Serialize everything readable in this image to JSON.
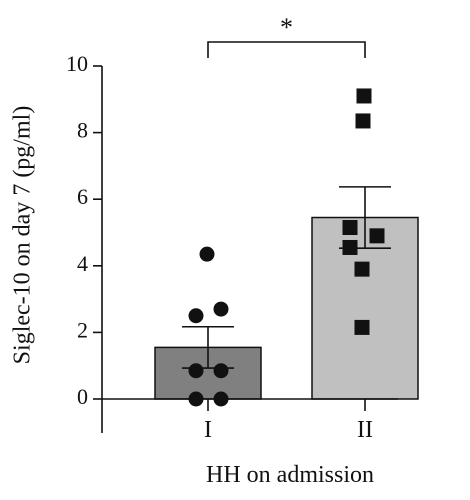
{
  "chart_data": {
    "type": "bar",
    "ylabel": "Siglec-10 on day 7 (pg/ml)",
    "xlabel": "HH on admission",
    "ylim": [
      0,
      10
    ],
    "yticks": [
      0,
      2,
      4,
      6,
      8,
      10
    ],
    "categories": [
      "I",
      "II"
    ],
    "means": [
      1.55,
      5.45
    ],
    "sem": [
      0.62,
      0.92
    ],
    "points": [
      [
        4.35,
        2.5,
        2.7,
        0.85,
        0.85,
        0.0,
        0.0
      ],
      [
        9.1,
        8.35,
        5.15,
        4.9,
        4.55,
        3.9,
        2.15
      ]
    ],
    "bar_colors": [
      "#808080",
      "#c0c0c0"
    ],
    "marker_shapes": [
      "circle",
      "square"
    ],
    "significance": {
      "label": "*",
      "between": [
        0,
        1
      ]
    },
    "grid": false,
    "legend": "none"
  }
}
